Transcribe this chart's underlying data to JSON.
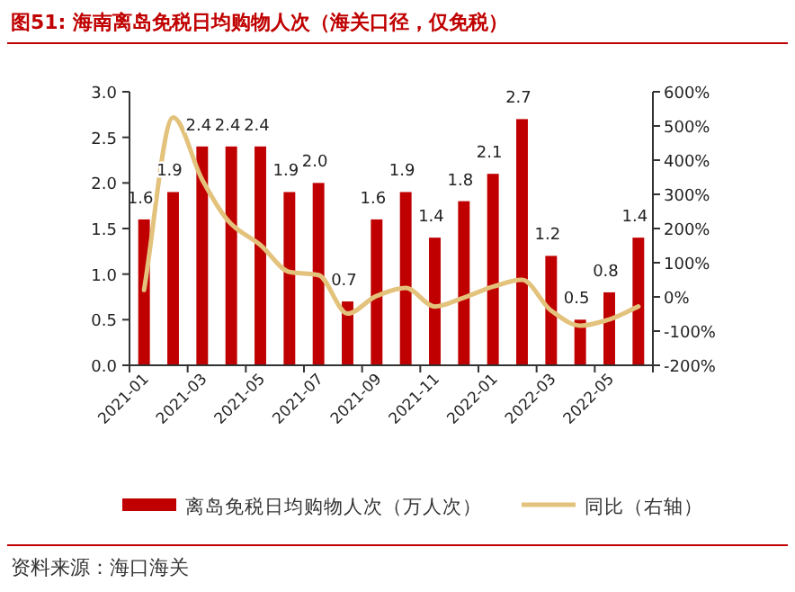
{
  "chart_data": {
    "type": "bar",
    "title": "图51:  海南离岛免税日均购物人次（海关口径，仅免税）",
    "categories": [
      "2021-01",
      null,
      "2021-03",
      null,
      "2021-05",
      null,
      "2021-07",
      null,
      "2021-09",
      null,
      "2021-11",
      null,
      "2022-01",
      null,
      "2022-03",
      null,
      "2022-05",
      null
    ],
    "series": [
      {
        "name": "离岛免税日均购物人次（万人次）",
        "color": "#c00000",
        "values": [
          1.6,
          1.9,
          2.4,
          2.4,
          2.4,
          1.9,
          2.0,
          0.7,
          1.6,
          1.9,
          1.4,
          1.8,
          2.1,
          2.7,
          1.2,
          0.5,
          0.8,
          1.4
        ],
        "value_labels": [
          "1.6",
          "1.9",
          "2.4",
          "2.4",
          "2.4",
          "1.9",
          "2.0",
          "0.7",
          "1.6",
          "1.9",
          "1.4",
          "1.8",
          "2.1",
          "2.7",
          "1.2",
          "0.5",
          "0.8",
          "1.4"
        ]
      },
      {
        "name": "同比（右轴）",
        "type": "line",
        "axis": "y2",
        "color": "#e3c27c",
        "values": [
          20,
          525,
          343,
          213,
          152,
          73,
          64,
          -49,
          3,
          26,
          -28,
          -2,
          30,
          50,
          -40,
          -84,
          -66,
          -28
        ]
      }
    ],
    "ylim": [
      0,
      3
    ],
    "yticks": [
      {
        "value": 0,
        "label": "0.0"
      },
      {
        "value": 0.5,
        "label": "0.5"
      },
      {
        "value": 1,
        "label": "1.0"
      },
      {
        "value": 1.5,
        "label": "1.5"
      },
      {
        "value": 2,
        "label": "2.0"
      },
      {
        "value": 2.5,
        "label": "2.5"
      },
      {
        "value": 3,
        "label": "3.0"
      }
    ],
    "y2lim": [
      -200,
      600
    ],
    "y2ticks": [
      {
        "value": -200,
        "label": "-200%"
      },
      {
        "value": -100,
        "label": "-100%"
      },
      {
        "value": 0,
        "label": "0%"
      },
      {
        "value": 100,
        "label": "100%"
      },
      {
        "value": 200,
        "label": "200%"
      },
      {
        "value": 300,
        "label": "300%"
      },
      {
        "value": 400,
        "label": "400%"
      },
      {
        "value": 500,
        "label": "500%"
      },
      {
        "value": 600,
        "label": "600%"
      }
    ],
    "legend": "bottom",
    "grid": false,
    "annotations": [
      "资料来源：海口海关"
    ]
  }
}
